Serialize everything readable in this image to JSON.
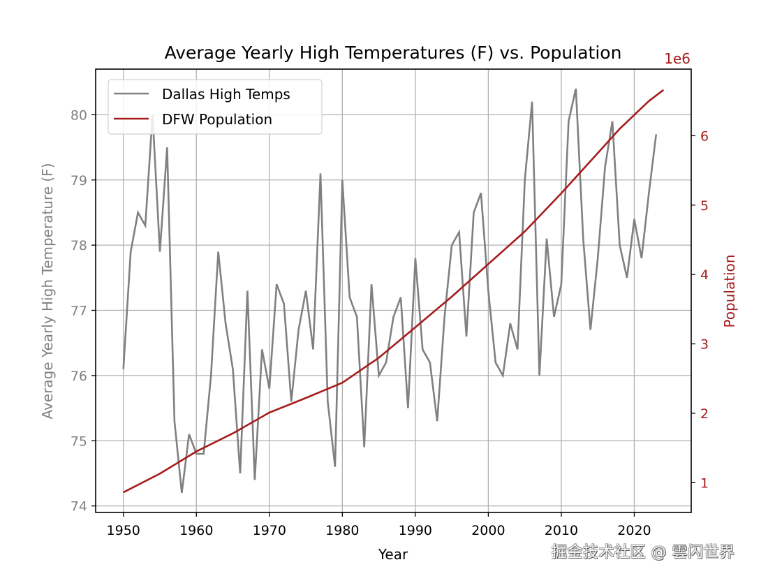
{
  "chart_data": {
    "type": "line",
    "title": "Average Yearly High Temperatures (F) vs. Population",
    "xlabel": "Year",
    "ylabel_left": "Average Yearly High Temperature (F)",
    "ylabel_right": "Population",
    "right_axis_offset_label": "1e6",
    "xlim": [
      1946.2,
      2027.8
    ],
    "ylim_left": [
      73.9,
      80.7
    ],
    "ylim_right": [
      0.57,
      6.96
    ],
    "x_ticks": [
      1950,
      1960,
      1970,
      1980,
      1990,
      2000,
      2010,
      2020
    ],
    "y_ticks_left": [
      74,
      75,
      76,
      77,
      78,
      79,
      80
    ],
    "y_ticks_right": [
      1,
      2,
      3,
      4,
      5,
      6
    ],
    "grid": true,
    "legend": {
      "position": "top-left",
      "entries": [
        "Dallas High Temps",
        "DFW Population"
      ]
    },
    "colors": {
      "temps": "#808080",
      "population": "#a51c1c",
      "right_axis": "#a51c1c",
      "left_axis_text": "#808080",
      "grid": "#b0b0b0"
    },
    "series": [
      {
        "name": "Dallas High Temps",
        "axis": "left",
        "x": [
          1950,
          1951,
          1952,
          1953,
          1954,
          1955,
          1956,
          1957,
          1958,
          1959,
          1960,
          1961,
          1962,
          1963,
          1964,
          1965,
          1966,
          1967,
          1968,
          1969,
          1970,
          1971,
          1972,
          1973,
          1974,
          1975,
          1976,
          1977,
          1978,
          1979,
          1980,
          1981,
          1982,
          1983,
          1984,
          1985,
          1986,
          1987,
          1988,
          1989,
          1990,
          1991,
          1992,
          1993,
          1994,
          1995,
          1996,
          1997,
          1998,
          1999,
          2000,
          2001,
          2002,
          2003,
          2004,
          2005,
          2006,
          2007,
          2008,
          2009,
          2010,
          2011,
          2012,
          2013,
          2014,
          2015,
          2016,
          2017,
          2018,
          2019,
          2020,
          2021,
          2022,
          2023
        ],
        "values": [
          76.1,
          77.9,
          78.5,
          78.3,
          80.0,
          77.9,
          79.5,
          75.3,
          74.2,
          75.1,
          74.8,
          74.8,
          76.0,
          77.9,
          76.8,
          76.1,
          74.5,
          77.3,
          74.4,
          76.4,
          75.8,
          77.4,
          77.1,
          75.6,
          76.7,
          77.3,
          76.4,
          79.1,
          75.6,
          74.6,
          79.0,
          77.2,
          76.9,
          74.9,
          77.4,
          76.0,
          76.2,
          76.9,
          77.2,
          75.5,
          77.8,
          76.4,
          76.2,
          75.3,
          76.9,
          78.0,
          78.2,
          76.6,
          78.5,
          78.8,
          77.3,
          76.2,
          76.0,
          76.8,
          76.4,
          79.0,
          80.2,
          76.0,
          78.1,
          76.9,
          77.4,
          79.9,
          80.4,
          78.1,
          76.7,
          77.8,
          79.2,
          79.9,
          78.0,
          77.5,
          78.4,
          77.8,
          78.8,
          79.7
        ]
      },
      {
        "name": "DFW Population",
        "axis": "right",
        "unit": "millions",
        "x": [
          1950,
          1955,
          1960,
          1965,
          1970,
          1975,
          1980,
          1985,
          1990,
          1995,
          2000,
          2005,
          2010,
          2015,
          2018,
          2020,
          2022,
          2024
        ],
        "values": [
          0.86,
          1.13,
          1.45,
          1.71,
          2.01,
          2.22,
          2.44,
          2.8,
          3.24,
          3.68,
          4.15,
          4.62,
          5.17,
          5.75,
          6.1,
          6.3,
          6.5,
          6.66
        ]
      }
    ]
  },
  "watermark": "掘金技术社区 @ 雲闪世界"
}
